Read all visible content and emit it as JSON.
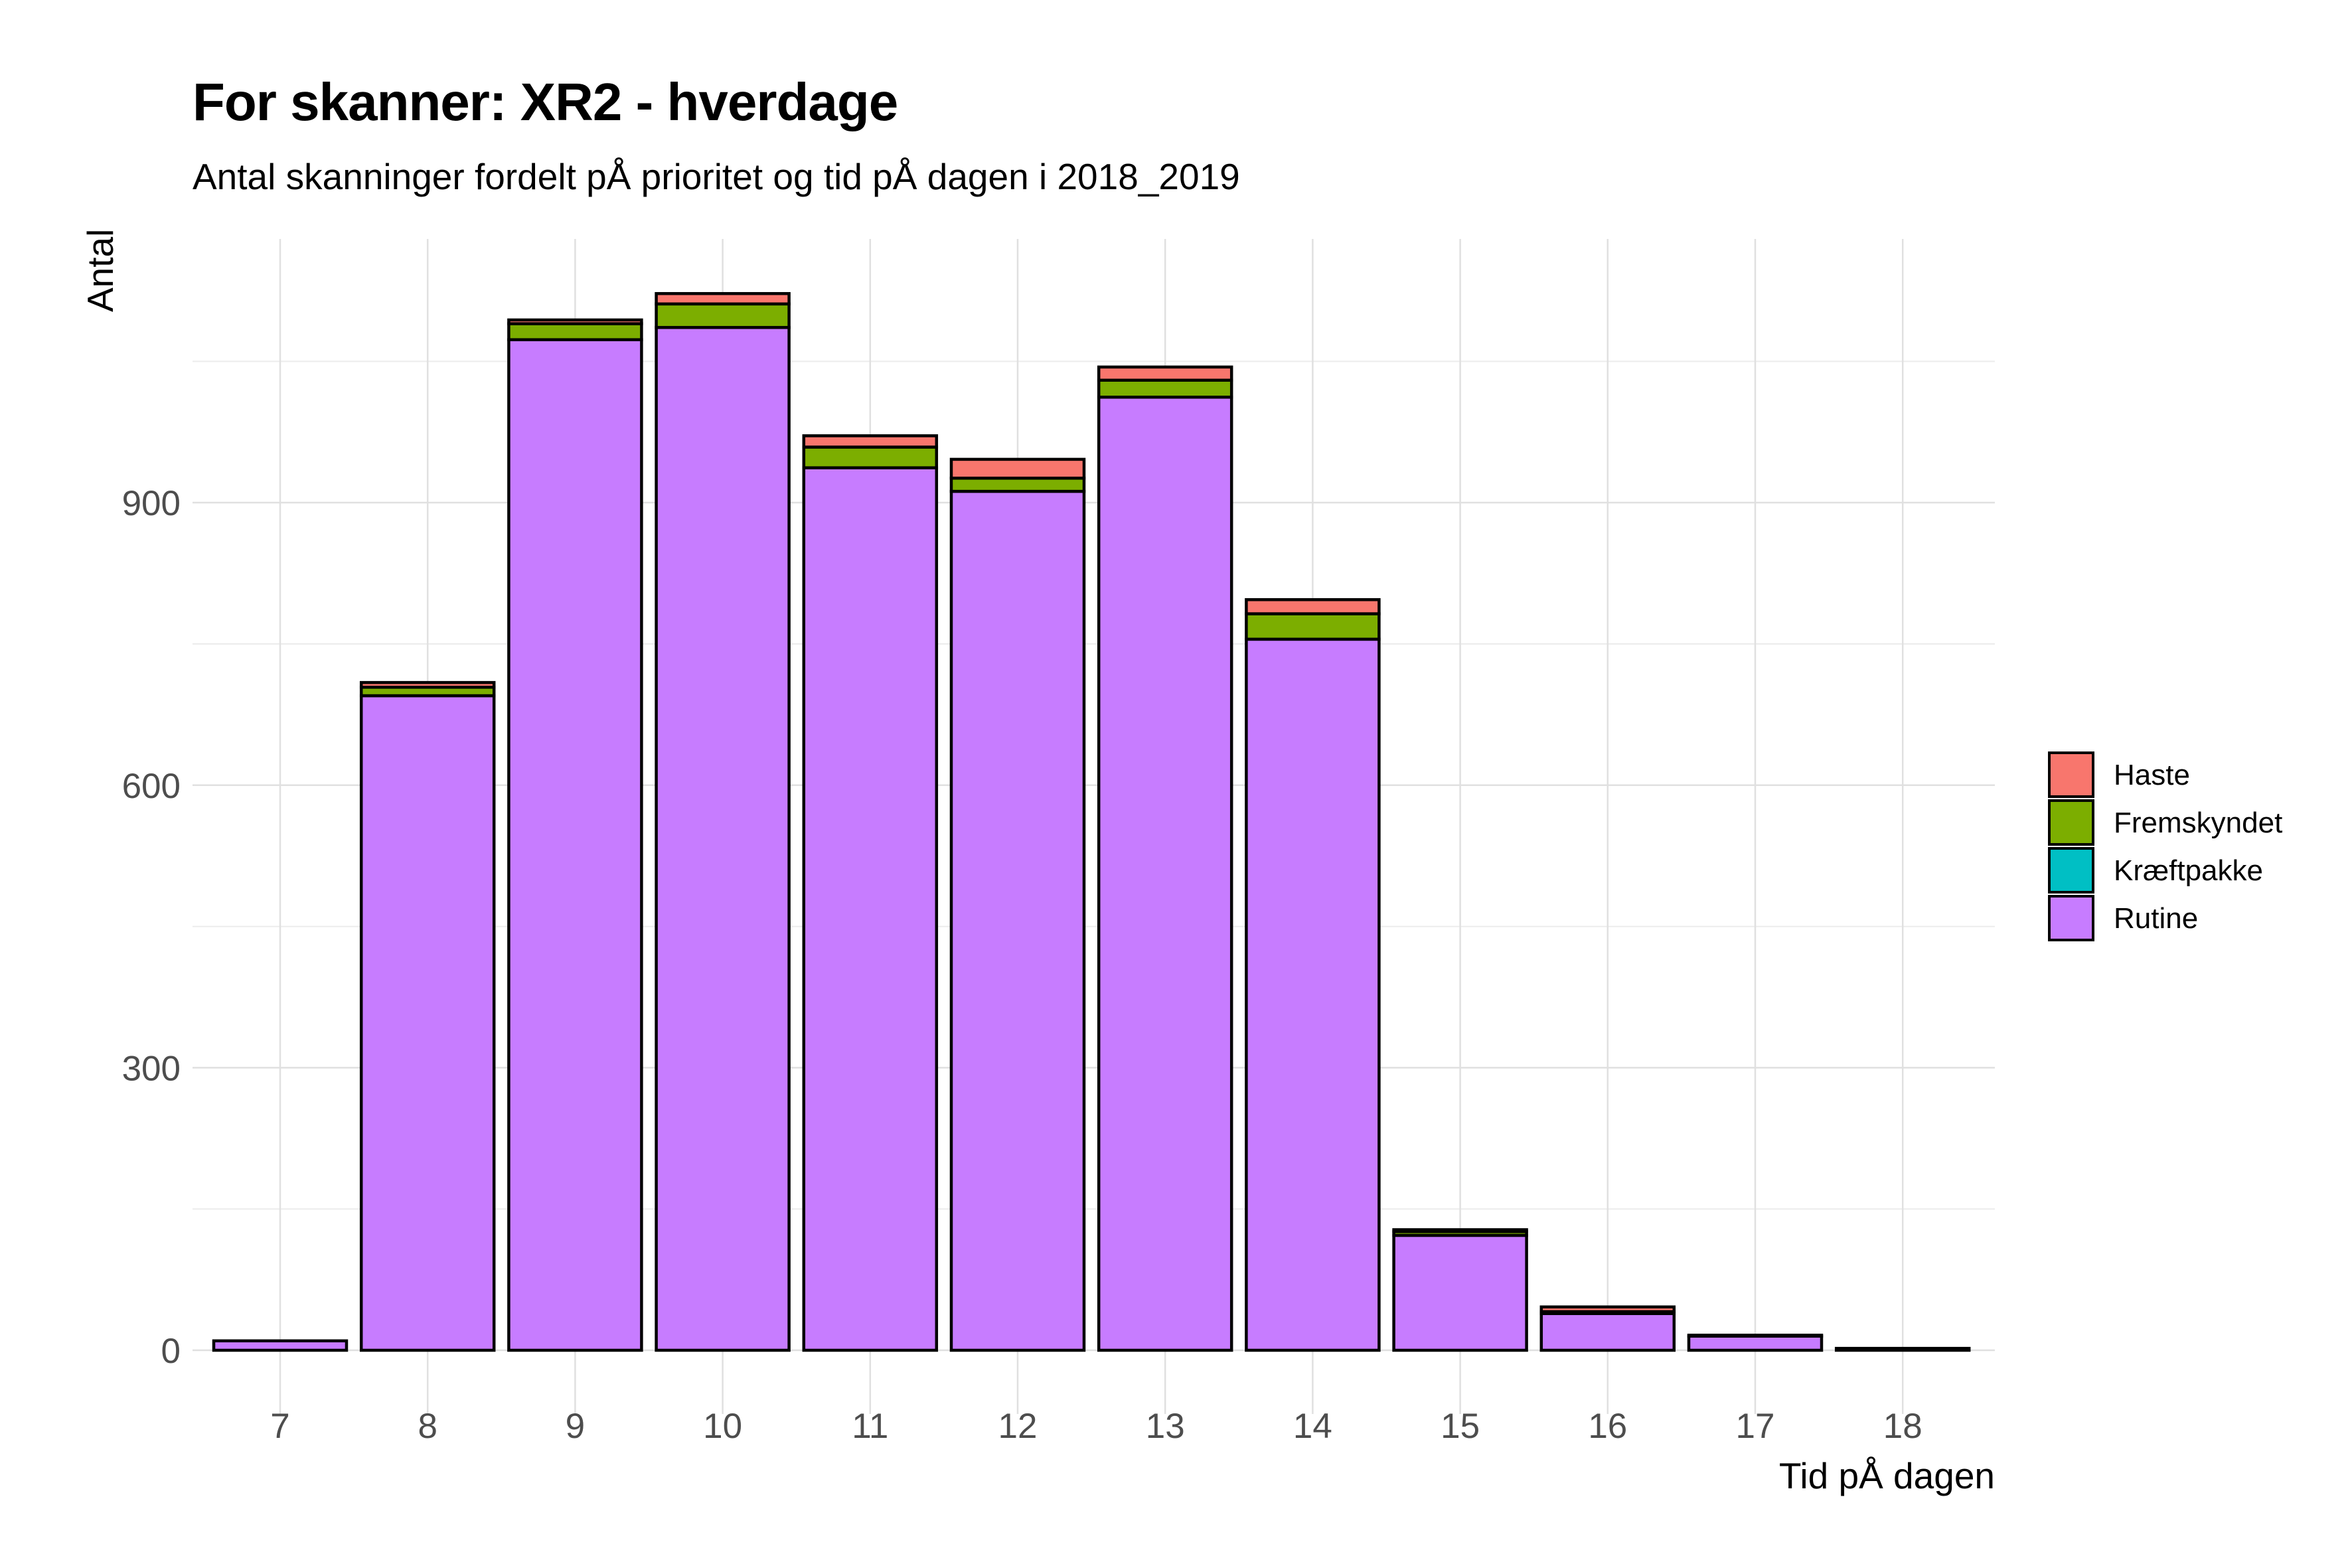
{
  "chart_data": {
    "type": "bar",
    "stacked": true,
    "title": "For skanner: XR2 - hverdage",
    "subtitle": "Antal skanninger fordelt pÅ prioritet og tid pÅ dagen i 2018_2019",
    "xlabel": "Tid pÅ dagen",
    "ylabel": "Antal",
    "categories": [
      "7",
      "8",
      "9",
      "10",
      "11",
      "12",
      "13",
      "14",
      "15",
      "16",
      "17",
      "18"
    ],
    "yticks": [
      0,
      300,
      600,
      900
    ],
    "ylim": [
      -50,
      1180
    ],
    "grid": true,
    "legend_position": "right",
    "series": [
      {
        "name": "Rutine",
        "color": "#C77CFF",
        "values": [
          10,
          695,
          1073,
          1086,
          937,
          912,
          1012,
          755,
          122,
          39,
          15,
          2
        ]
      },
      {
        "name": "Kræftpakke",
        "color": "#00BFC4",
        "values": [
          0,
          0,
          0,
          0,
          0,
          0,
          0,
          0,
          0,
          0,
          0,
          0
        ]
      },
      {
        "name": "Fremskyndet",
        "color": "#7CAE00",
        "values": [
          0,
          9,
          17,
          25,
          22,
          14,
          18,
          27,
          4,
          2,
          1,
          0
        ]
      },
      {
        "name": "Haste",
        "color": "#F8766D",
        "values": [
          0,
          5,
          4,
          11,
          12,
          20,
          14,
          15,
          2,
          5,
          0,
          0
        ]
      }
    ],
    "legend_order": [
      "Haste",
      "Fremskyndet",
      "Kræftpakke",
      "Rutine"
    ]
  }
}
